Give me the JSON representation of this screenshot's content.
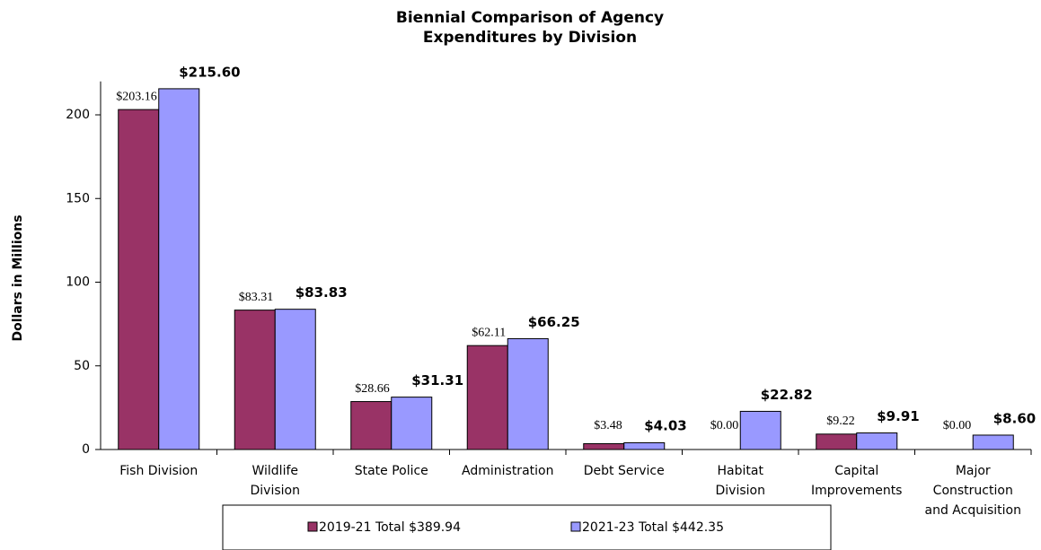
{
  "chart_data": {
    "type": "bar",
    "title": [
      "Biennial Comparison of Agency",
      "Expenditures by Division"
    ],
    "y_label": "Dollars in Millions",
    "categories": [
      [
        "Fish Division"
      ],
      [
        "Wildlife",
        "Division"
      ],
      [
        "State Police"
      ],
      [
        "Administration"
      ],
      [
        "Debt Service"
      ],
      [
        "Habitat",
        "Division"
      ],
      [
        "Capital",
        "Improvements"
      ],
      [
        "Major",
        "Construction",
        "and Acquisition"
      ]
    ],
    "series": [
      {
        "name": "2019-21 Total $389.94",
        "color": "#993366",
        "values": [
          203.16,
          83.31,
          28.66,
          62.11,
          3.48,
          0,
          9.22,
          0
        ],
        "value_labels": [
          "$203.16",
          "$83.31",
          "$28.66",
          "$62.11",
          "$3.48",
          "$0.00",
          "$9.22",
          "$0.00"
        ]
      },
      {
        "name": "2021-23 Total $442.35",
        "color": "#9999ff",
        "values": [
          215.6,
          83.83,
          31.31,
          66.25,
          4.03,
          22.82,
          9.91,
          8.6
        ],
        "value_labels": [
          "$215.60",
          "$83.83",
          "$31.31",
          "$66.25",
          "$4.03",
          "$22.82",
          "$9.91",
          "$8.60"
        ]
      }
    ],
    "ylim": [
      0,
      220
    ],
    "yticks": [
      0,
      50,
      100,
      150,
      200
    ],
    "grid": false,
    "legend": "bottom"
  }
}
